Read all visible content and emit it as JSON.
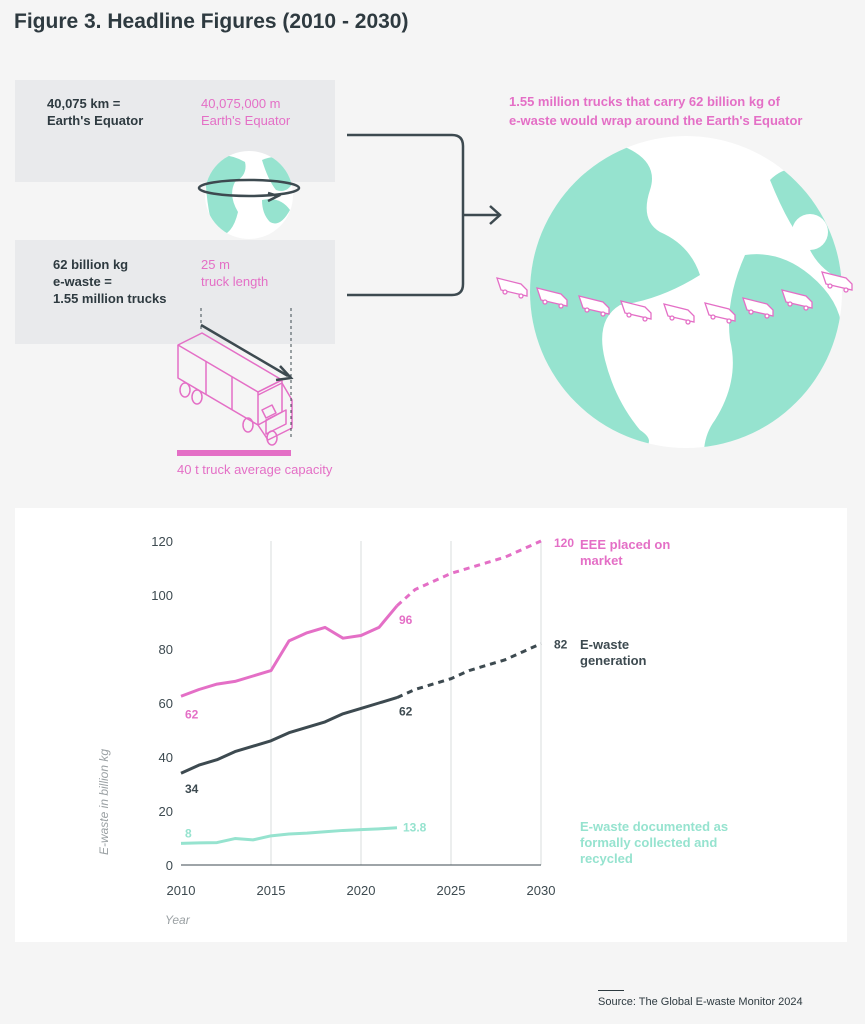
{
  "header": {
    "title": "Figure 3. Headline Figures (2010 - 2030)"
  },
  "infographic": {
    "equator_km": "40,075 km =",
    "equator_km_2": "Earth's Equator",
    "equator_m": "40,075,000 m",
    "equator_m_2": "Earth's Equator",
    "ewaste_kg_1": "62 billion kg",
    "ewaste_kg_2": "e-waste =",
    "ewaste_kg_3": "1.55 million trucks",
    "truck_length_1": "25 m",
    "truck_length_2": "truck length",
    "truck_capacity": "40 t truck average capacity",
    "wrap_text_1": "1.55 million trucks that carry 62 billion kg of",
    "wrap_text_2": "e-waste would wrap around the Earth's Equator",
    "colors": {
      "pink": "#e46fc6",
      "green": "#96e3cf",
      "dark": "#3d4a50",
      "gray_box": "#e9eaec"
    }
  },
  "chart_data": {
    "type": "line",
    "title": "",
    "xlabel": "Year",
    "ylabel": "E-waste in billion kg",
    "xlim": [
      2010,
      2030
    ],
    "ylim": [
      0,
      120
    ],
    "xticks": [
      2010,
      2015,
      2020,
      2025,
      2030
    ],
    "yticks": [
      0,
      20,
      40,
      60,
      80,
      100,
      120
    ],
    "grid": "vertical",
    "series": [
      {
        "name": "EEE placed on market",
        "name_line1": "EEE placed on",
        "name_line2": "market",
        "color": "#e46fc6",
        "x": [
          2010,
          2011,
          2012,
          2013,
          2014,
          2015,
          2016,
          2017,
          2018,
          2019,
          2020,
          2021,
          2022
        ],
        "values": [
          62.5,
          65,
          67,
          68,
          70,
          72,
          83,
          86,
          88,
          84,
          85,
          88,
          96
        ],
        "projection_x": [
          2022,
          2023,
          2024,
          2025,
          2026,
          2027,
          2028,
          2029,
          2030
        ],
        "projection_values": [
          96,
          102,
          105,
          108,
          110,
          112,
          114,
          117,
          120
        ],
        "label_start": "62",
        "label_end": "96",
        "label_proj": "120"
      },
      {
        "name": "E-waste generation",
        "name_line1": "E-waste",
        "name_line2": "generation",
        "color": "#3d4a50",
        "x": [
          2010,
          2011,
          2012,
          2013,
          2014,
          2015,
          2016,
          2017,
          2018,
          2019,
          2020,
          2021,
          2022
        ],
        "values": [
          34,
          37,
          39,
          42,
          44,
          46,
          49,
          51,
          53,
          56,
          58,
          60,
          62
        ],
        "projection_x": [
          2022,
          2023,
          2024,
          2025,
          2026,
          2027,
          2028,
          2029,
          2030
        ],
        "projection_values": [
          62,
          65,
          67,
          69,
          72,
          74,
          76,
          79,
          82
        ],
        "label_start": "34",
        "label_end": "62",
        "label_proj": "82"
      },
      {
        "name": "E-waste documented as formally collected and recycled",
        "name_line1": "E-waste documented as",
        "name_line2": "formally collected and",
        "name_line3": "recycled",
        "color": "#96e3cf",
        "x": [
          2010,
          2011,
          2012,
          2013,
          2014,
          2015,
          2016,
          2017,
          2018,
          2019,
          2020,
          2021,
          2022
        ],
        "values": [
          8,
          8.2,
          8.3,
          9.8,
          9.3,
          10.8,
          11.5,
          11.8,
          12.3,
          12.8,
          13.1,
          13.4,
          13.8
        ],
        "label_start": "8",
        "label_end": "13.8"
      }
    ]
  },
  "footer": {
    "source": "Source: The Global E-waste Monitor 2024"
  }
}
